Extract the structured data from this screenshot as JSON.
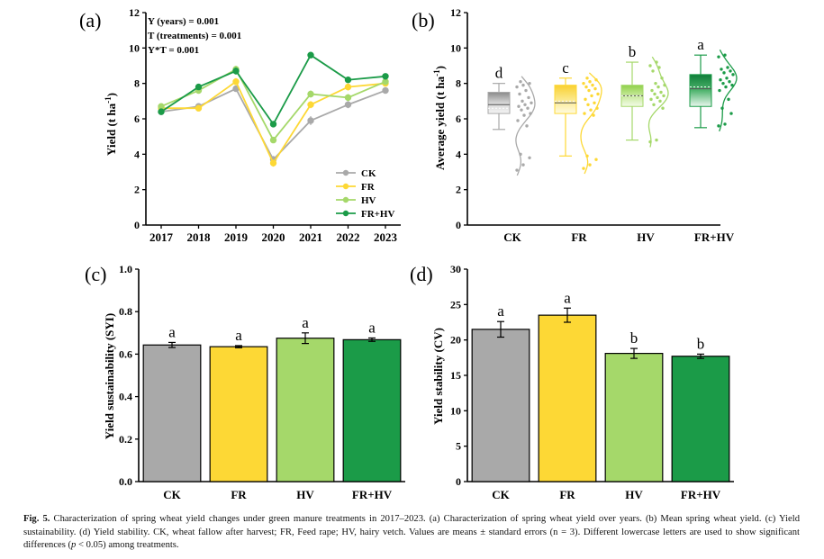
{
  "colors": {
    "CK": "#a9a9a9",
    "FR": "#fdd835",
    "HV": "#a5d86a",
    "FR+HV": "#1b9b48"
  },
  "chart_data": [
    {
      "id": "a",
      "type": "line",
      "panel_label": "(a)",
      "xlabel": "",
      "ylabel": "Yield (t ha-1)",
      "ylabel_main": "Yield (t ha",
      "ylabel_sup": "-1",
      "ylabel_end": ")",
      "x": [
        "2017",
        "2018",
        "2019",
        "2020",
        "2021",
        "2022",
        "2023"
      ],
      "ylim": [
        0,
        12
      ],
      "yticks": [
        "0",
        "2",
        "4",
        "6",
        "8",
        "10",
        "12"
      ],
      "stats": [
        "Y (years) = 0.001",
        "T (treatments) = 0.001",
        "Y*T = 0.001"
      ],
      "legend": [
        "CK",
        "FR",
        "HV",
        "FR+HV"
      ],
      "series": [
        {
          "name": "CK",
          "values": [
            6.4,
            6.7,
            7.7,
            3.7,
            5.9,
            6.8,
            7.6
          ],
          "err": [
            0.15,
            0.15,
            0.15,
            0.2,
            0.25,
            0.2,
            0.12
          ]
        },
        {
          "name": "FR",
          "values": [
            6.6,
            6.6,
            8.1,
            3.5,
            6.8,
            7.8,
            8.0
          ],
          "err": [
            0.15,
            0.15,
            0.2,
            0.2,
            0.2,
            0.2,
            0.12
          ]
        },
        {
          "name": "HV",
          "values": [
            6.7,
            7.6,
            8.8,
            4.8,
            7.4,
            7.2,
            8.1
          ],
          "err": [
            0.15,
            0.15,
            0.2,
            0.15,
            0.2,
            0.2,
            0.12
          ]
        },
        {
          "name": "FR+HV",
          "values": [
            6.4,
            7.8,
            8.7,
            5.7,
            9.6,
            8.2,
            8.4
          ],
          "err": [
            0.15,
            0.15,
            0.2,
            0.1,
            0.1,
            0.15,
            0.15
          ]
        }
      ]
    },
    {
      "id": "b",
      "type": "box",
      "panel_label": "(b)",
      "ylabel": "Average yield (t ha-1)",
      "ylabel_main": "Average yield (t ha",
      "ylabel_sup": "-1",
      "ylabel_end": ")",
      "categories": [
        "CK",
        "FR",
        "HV",
        "FR+HV"
      ],
      "ylim": [
        0,
        12
      ],
      "yticks": [
        "0",
        "2",
        "4",
        "6",
        "8",
        "10",
        "12"
      ],
      "boxes": [
        {
          "name": "CK",
          "min": 5.4,
          "q1": 6.3,
          "median": 6.8,
          "mean": 6.6,
          "q3": 7.5,
          "max": 8.0,
          "letter": "d",
          "points": [
            3.1,
            3.4,
            3.8,
            4.0,
            5.6,
            5.9,
            6.2,
            6.3,
            6.5,
            6.6,
            6.7,
            6.8,
            6.9,
            7.0,
            7.2,
            7.4,
            7.6,
            7.8,
            7.9,
            8.0,
            8.1
          ]
        },
        {
          "name": "FR",
          "min": 3.9,
          "q1": 6.3,
          "median": 6.9,
          "mean": 7.0,
          "q3": 7.9,
          "max": 8.3,
          "letter": "c",
          "points": [
            3.2,
            3.4,
            3.7,
            3.9,
            6.2,
            6.3,
            6.5,
            6.6,
            6.8,
            6.9,
            7.1,
            7.3,
            7.4,
            7.6,
            7.7,
            7.8,
            7.9,
            8.0,
            8.1,
            8.2,
            8.3
          ]
        },
        {
          "name": "HV",
          "min": 4.8,
          "q1": 6.7,
          "median": 7.3,
          "mean": 7.3,
          "q3": 7.9,
          "max": 9.2,
          "letter": "b",
          "points": [
            4.7,
            4.8,
            6.6,
            6.8,
            7.0,
            7.1,
            7.2,
            7.3,
            7.4,
            7.5,
            7.6,
            7.8,
            7.9,
            8.0,
            8.3,
            8.7,
            8.9,
            9.0,
            9.2
          ]
        },
        {
          "name": "FR+HV",
          "min": 5.5,
          "q1": 6.7,
          "median": 7.7,
          "mean": 7.8,
          "q3": 8.5,
          "max": 9.6,
          "letter": "a",
          "points": [
            5.6,
            5.7,
            6.3,
            6.6,
            7.1,
            7.6,
            7.8,
            7.9,
            8.0,
            8.1,
            8.2,
            8.3,
            8.5,
            8.6,
            8.7,
            8.8,
            8.9,
            9.5,
            9.6
          ]
        }
      ]
    },
    {
      "id": "c",
      "type": "bar",
      "panel_label": "(c)",
      "ylabel": "Yield sustainability (SYI)",
      "categories": [
        "CK",
        "FR",
        "HV",
        "FR+HV"
      ],
      "values": [
        0.643,
        0.635,
        0.675,
        0.668
      ],
      "err": [
        0.012,
        0.005,
        0.025,
        0.008
      ],
      "letters": [
        "a",
        "a",
        "a",
        "a"
      ],
      "ylim": [
        0,
        1.0
      ],
      "yticks": [
        "0.0",
        "0.2",
        "0.4",
        "0.6",
        "0.8",
        "1.0"
      ]
    },
    {
      "id": "d",
      "type": "bar",
      "panel_label": "(d)",
      "ylabel": "Yield stability (CV)",
      "categories": [
        "CK",
        "FR",
        "HV",
        "FR+HV"
      ],
      "values": [
        21.5,
        23.5,
        18.1,
        17.7
      ],
      "err": [
        1.1,
        1.0,
        0.7,
        0.3
      ],
      "letters": [
        "a",
        "a",
        "b",
        "b"
      ],
      "ylim": [
        0,
        30
      ],
      "yticks": [
        "0",
        "5",
        "10",
        "15",
        "20",
        "25",
        "30"
      ]
    }
  ],
  "caption": {
    "fig_label": "Fig. 5.",
    "part1": " Characterization of spring wheat yield changes under green manure treatments in 2017–2023. (a) Characterization of spring wheat yield over years. (b) Mean spring wheat yield. (c) Yield sustainability. (d) Yield stability. CK, wheat fallow after harvest; FR, Feed rape; HV, hairy vetch. Values are means ± standard errors (n = 3). Different lowercase letters are used to show significant differences (",
    "p_symbol": "p",
    "part2": " < 0.05) among treatments."
  }
}
